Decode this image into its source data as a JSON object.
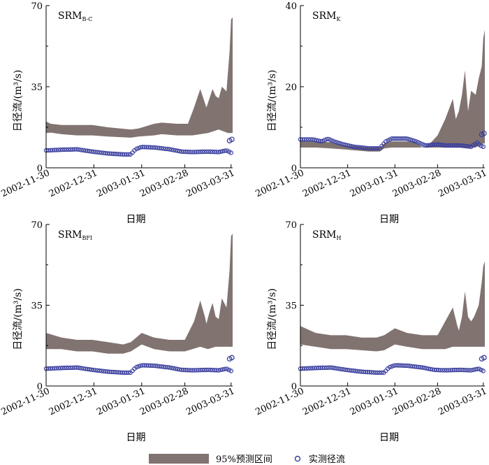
{
  "legend": {
    "band_label": "95%预测区间",
    "obs_label": "实测径流"
  },
  "colors": {
    "band": "#817370",
    "obs": "#3a3f9e",
    "axis": "#000000"
  },
  "chart_data": [
    {
      "type": "area",
      "title": "SRM",
      "title_sub": "B-C",
      "xlabel": "日期",
      "ylabel": "日径流/(m³/s)",
      "ylim": [
        0,
        70
      ],
      "yticks": [
        0,
        35,
        70
      ],
      "xticks": [
        "2002-11-30",
        "2002-12-31",
        "2003-01-31",
        "2003-02-28",
        "2003-03-31"
      ],
      "band": {
        "lower": [
          [
            0,
            15
          ],
          [
            3,
            15.2
          ],
          [
            10,
            14.5
          ],
          [
            20,
            14
          ],
          [
            30,
            14
          ],
          [
            40,
            13.5
          ],
          [
            55,
            13
          ],
          [
            60,
            13.5
          ],
          [
            70,
            14
          ],
          [
            75,
            14.5
          ],
          [
            85,
            14
          ],
          [
            95,
            14
          ],
          [
            100,
            14.5
          ],
          [
            105,
            15
          ],
          [
            112,
            16.5
          ],
          [
            118,
            15
          ],
          [
            120,
            15
          ],
          [
            121,
            15
          ]
        ],
        "upper": [
          [
            0,
            20
          ],
          [
            3,
            19
          ],
          [
            10,
            18.5
          ],
          [
            20,
            18.5
          ],
          [
            30,
            18.5
          ],
          [
            40,
            17.5
          ],
          [
            55,
            16.5
          ],
          [
            60,
            17
          ],
          [
            70,
            19
          ],
          [
            75,
            19.5
          ],
          [
            85,
            19
          ],
          [
            92,
            19
          ],
          [
            96,
            26
          ],
          [
            100,
            34
          ],
          [
            103,
            28
          ],
          [
            104,
            26
          ],
          [
            106,
            30
          ],
          [
            108,
            34
          ],
          [
            110,
            31
          ],
          [
            112,
            30
          ],
          [
            114,
            35
          ],
          [
            117,
            33
          ],
          [
            119,
            50
          ],
          [
            120,
            64
          ],
          [
            121,
            65
          ]
        ]
      },
      "obs": {
        "n": 91,
        "profile": "default",
        "offset": 0
      }
    },
    {
      "type": "area",
      "title": "SRM",
      "title_sub": "K",
      "xlabel": "日期",
      "ylabel": "日径流/(m³/s)",
      "ylim": [
        0,
        40
      ],
      "yticks": [
        0,
        20,
        40
      ],
      "xticks": [
        "2002-11-30",
        "2002-12-31",
        "2003-01-31",
        "2003-02-28",
        "2003-03-31"
      ],
      "band": {
        "lower": [
          [
            0,
            5
          ],
          [
            10,
            5
          ],
          [
            20,
            4.8
          ],
          [
            30,
            4.5
          ],
          [
            45,
            4
          ],
          [
            52,
            4
          ],
          [
            55,
            4.8
          ],
          [
            60,
            5
          ],
          [
            75,
            5
          ],
          [
            85,
            5
          ],
          [
            90,
            5
          ],
          [
            95,
            5
          ],
          [
            100,
            5
          ],
          [
            105,
            5
          ],
          [
            110,
            5
          ],
          [
            115,
            5
          ],
          [
            120,
            6
          ],
          [
            121,
            6
          ]
        ],
        "upper": [
          [
            0,
            6.5
          ],
          [
            10,
            6.5
          ],
          [
            20,
            6.3
          ],
          [
            30,
            5.5
          ],
          [
            45,
            5
          ],
          [
            52,
            5
          ],
          [
            55,
            6
          ],
          [
            60,
            6.5
          ],
          [
            75,
            6.5
          ],
          [
            80,
            5
          ],
          [
            85,
            6
          ],
          [
            90,
            8
          ],
          [
            95,
            12
          ],
          [
            100,
            17
          ],
          [
            102,
            12
          ],
          [
            104,
            14
          ],
          [
            106,
            18
          ],
          [
            108,
            24
          ],
          [
            110,
            14
          ],
          [
            112,
            19
          ],
          [
            115,
            18
          ],
          [
            117,
            22
          ],
          [
            119,
            25
          ],
          [
            120,
            32
          ],
          [
            121,
            34
          ]
        ]
      },
      "obs": {
        "n": 91,
        "profile": "k",
        "offset": 0
      }
    },
    {
      "type": "area",
      "title": "SRM",
      "title_sub": "BFI",
      "xlabel": "日期",
      "ylabel": "日径流/(m³/s)",
      "ylim": [
        0,
        70
      ],
      "yticks": [
        0,
        35,
        70
      ],
      "xticks": [
        "2002-11-30",
        "2002-12-31",
        "2003-01-31",
        "2003-02-28",
        "2003-03-31"
      ],
      "band": {
        "lower": [
          [
            0,
            16
          ],
          [
            10,
            16
          ],
          [
            20,
            15
          ],
          [
            30,
            15
          ],
          [
            40,
            14
          ],
          [
            50,
            14
          ],
          [
            55,
            15
          ],
          [
            62,
            18
          ],
          [
            70,
            16
          ],
          [
            80,
            15
          ],
          [
            90,
            15
          ],
          [
            95,
            16
          ],
          [
            100,
            17
          ],
          [
            105,
            16
          ],
          [
            110,
            17
          ],
          [
            115,
            17
          ],
          [
            120,
            17
          ],
          [
            121,
            17
          ]
        ],
        "upper": [
          [
            0,
            23
          ],
          [
            10,
            21
          ],
          [
            20,
            20
          ],
          [
            30,
            20
          ],
          [
            40,
            19
          ],
          [
            50,
            18
          ],
          [
            55,
            19
          ],
          [
            62,
            23
          ],
          [
            70,
            21
          ],
          [
            80,
            20
          ],
          [
            90,
            20
          ],
          [
            96,
            28
          ],
          [
            100,
            37
          ],
          [
            103,
            30
          ],
          [
            104,
            27
          ],
          [
            106,
            32
          ],
          [
            108,
            36
          ],
          [
            110,
            30
          ],
          [
            112,
            29
          ],
          [
            114,
            38
          ],
          [
            117,
            34
          ],
          [
            119,
            50
          ],
          [
            120,
            65
          ],
          [
            121,
            66
          ]
        ]
      },
      "obs": {
        "n": 91,
        "profile": "default",
        "offset": 0
      }
    },
    {
      "type": "area",
      "title": "SRM",
      "title_sub": "H",
      "xlabel": "日期",
      "ylabel": "日径流/(m³/s)",
      "ylim": [
        0,
        70
      ],
      "yticks": [
        0,
        35,
        70
      ],
      "xticks": [
        "2002-11-30",
        "2002-12-31",
        "2003-01-31",
        "2003-02-28",
        "2003-03-31"
      ],
      "band": {
        "lower": [
          [
            0,
            18
          ],
          [
            10,
            17
          ],
          [
            20,
            16
          ],
          [
            30,
            16
          ],
          [
            40,
            15.5
          ],
          [
            50,
            15
          ],
          [
            55,
            15.5
          ],
          [
            62,
            18
          ],
          [
            70,
            17
          ],
          [
            80,
            16
          ],
          [
            90,
            16
          ],
          [
            95,
            16
          ],
          [
            100,
            17
          ],
          [
            105,
            17
          ],
          [
            110,
            17
          ],
          [
            115,
            17
          ],
          [
            120,
            17
          ],
          [
            121,
            17
          ]
        ],
        "upper": [
          [
            0,
            26
          ],
          [
            10,
            23
          ],
          [
            20,
            22
          ],
          [
            30,
            22
          ],
          [
            40,
            21
          ],
          [
            50,
            21
          ],
          [
            55,
            22
          ],
          [
            62,
            25
          ],
          [
            70,
            23
          ],
          [
            80,
            22
          ],
          [
            90,
            22
          ],
          [
            95,
            28
          ],
          [
            100,
            34
          ],
          [
            103,
            26
          ],
          [
            104,
            24
          ],
          [
            106,
            30
          ],
          [
            108,
            41
          ],
          [
            110,
            30
          ],
          [
            112,
            28
          ],
          [
            114,
            30
          ],
          [
            117,
            35
          ],
          [
            119,
            45
          ],
          [
            120,
            52
          ],
          [
            121,
            54
          ]
        ]
      },
      "obs": {
        "n": 91,
        "profile": "default",
        "offset": 0
      }
    }
  ]
}
